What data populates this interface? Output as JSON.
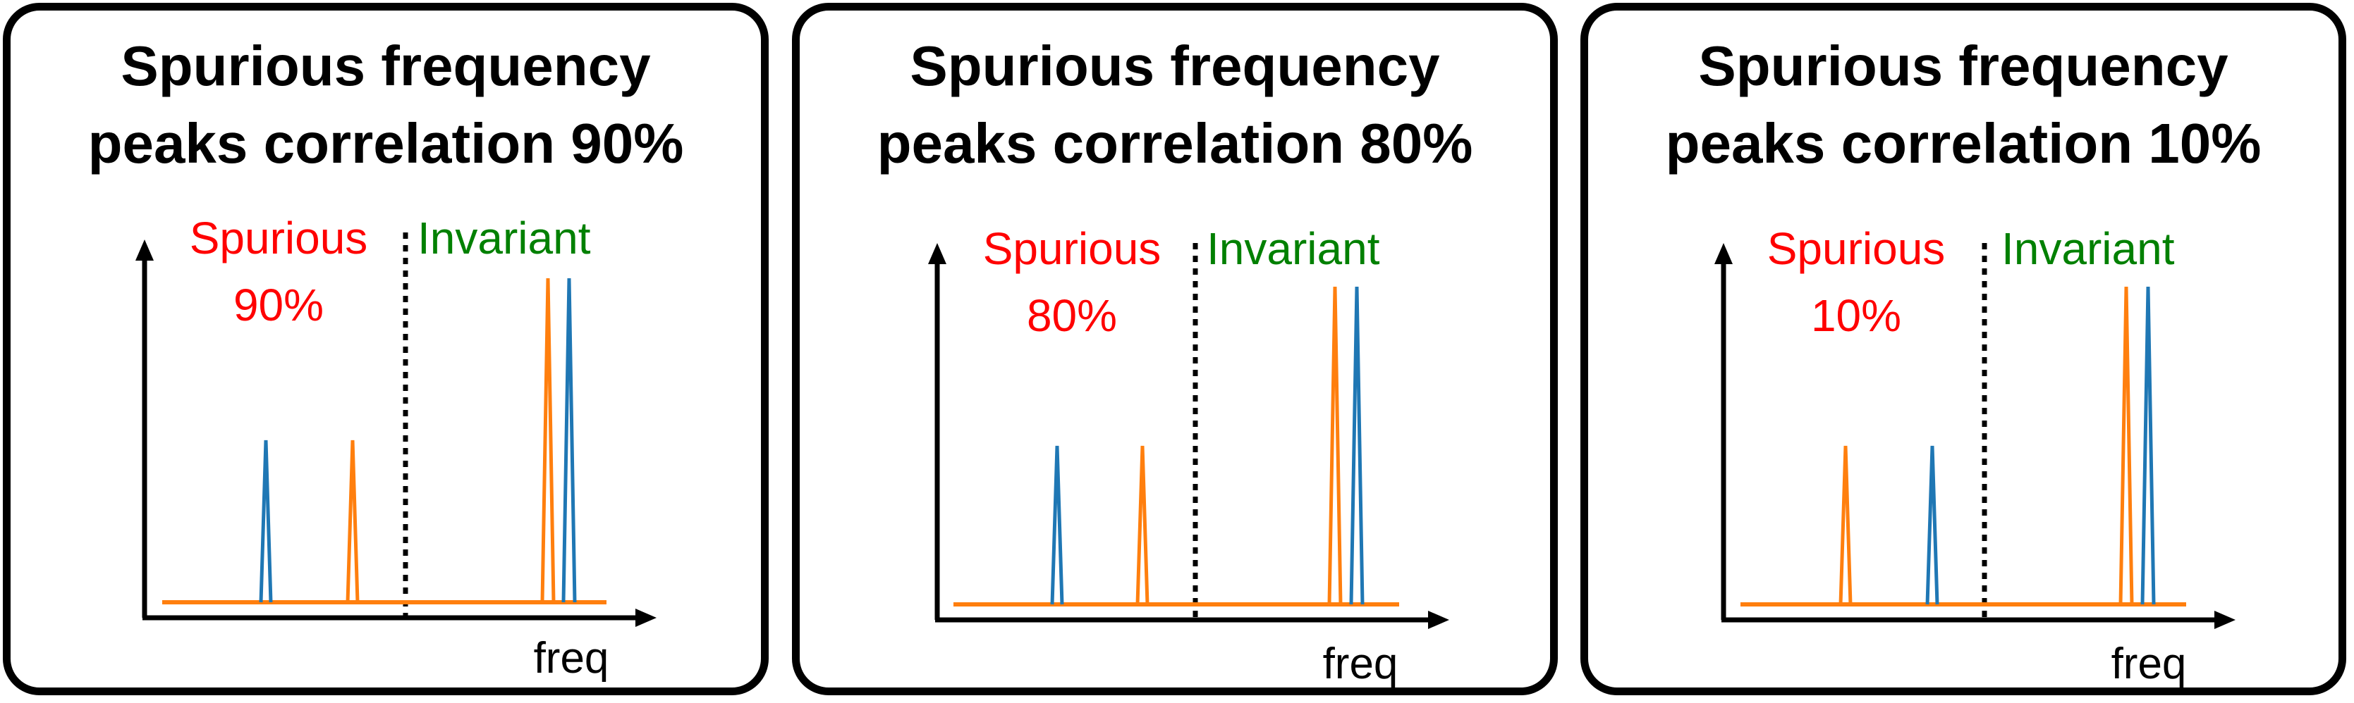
{
  "colors": {
    "blue": "#1f77b4",
    "orange": "#ff7f0e",
    "spurious_label": "#ff0000",
    "invariant_label": "#008000",
    "axis": "#000000"
  },
  "panels": [
    {
      "title_line1": "Spurious frequency",
      "title_line2": "peaks correlation 90%",
      "spurious_label": "Spurious",
      "spurious_percent": "90%",
      "invariant_label": "Invariant",
      "axis_label": "freq"
    },
    {
      "title_line1": "Spurious frequency",
      "title_line2": "peaks correlation 80%",
      "spurious_label": "Spurious",
      "spurious_percent": "80%",
      "invariant_label": "Invariant",
      "axis_label": "freq"
    },
    {
      "title_line1": "Spurious frequency",
      "title_line2": "peaks correlation 10%",
      "spurious_label": "Spurious",
      "spurious_percent": "10%",
      "invariant_label": "Invariant",
      "axis_label": "freq"
    }
  ]
}
